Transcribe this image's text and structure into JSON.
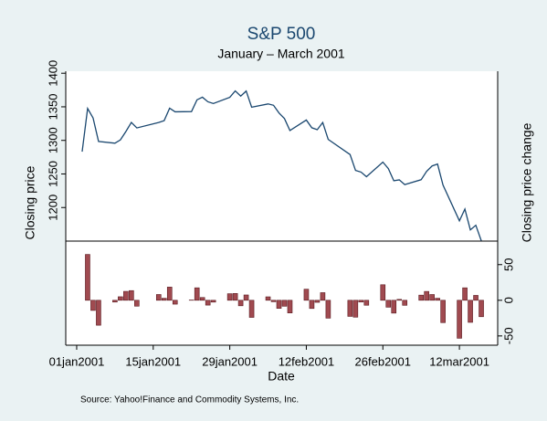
{
  "chart_data": {
    "type": "line",
    "title": "S&P 500",
    "subtitle": "January – March 2001",
    "xlabel": "Date",
    "ylabel": "Closing price",
    "y2label": "Closing price change",
    "note": "Source:  Yahoo!Finance and Commodity Systems, Inc.",
    "x": [
      "2001-01-02",
      "2001-01-03",
      "2001-01-04",
      "2001-01-05",
      "2001-01-08",
      "2001-01-09",
      "2001-01-10",
      "2001-01-11",
      "2001-01-12",
      "2001-01-16",
      "2001-01-17",
      "2001-01-18",
      "2001-01-19",
      "2001-01-22",
      "2001-01-23",
      "2001-01-24",
      "2001-01-25",
      "2001-01-26",
      "2001-01-29",
      "2001-01-30",
      "2001-01-31",
      "2001-02-01",
      "2001-02-02",
      "2001-02-05",
      "2001-02-06",
      "2001-02-07",
      "2001-02-08",
      "2001-02-09",
      "2001-02-12",
      "2001-02-13",
      "2001-02-14",
      "2001-02-15",
      "2001-02-16",
      "2001-02-20",
      "2001-02-21",
      "2001-02-22",
      "2001-02-23",
      "2001-02-26",
      "2001-02-27",
      "2001-02-28",
      "2001-03-01",
      "2001-03-02",
      "2001-03-05",
      "2001-03-06",
      "2001-03-07",
      "2001-03-08",
      "2001-03-09",
      "2001-03-12",
      "2001-03-13",
      "2001-03-14",
      "2001-03-15",
      "2001-03-16"
    ],
    "series": [
      {
        "color": "#1a476f",
        "values": [
          1283.27,
          1347.56,
          1333.34,
          1298.35,
          1295.86,
          1300.8,
          1313.27,
          1326.82,
          1318.55,
          1326.65,
          1329.47,
          1347.97,
          1342.54,
          1342.9,
          1360.4,
          1364.3,
          1357.51,
          1354.95,
          1364.17,
          1373.73,
          1366.01,
          1373.47,
          1349.47,
          1354.31,
          1352.26,
          1340.89,
          1332.53,
          1314.76,
          1330.31,
          1318.8,
          1315.92,
          1326.61,
          1301.53,
          1278.94,
          1255.27,
          1252.82,
          1245.86,
          1267.65,
          1257.94,
          1239.94,
          1241.23,
          1234.18,
          1241.41,
          1253.8,
          1261.89,
          1264.74,
          1233.42,
          1180.16,
          1197.66,
          1166.71,
          1173.56,
          1150.53
        ]
      },
      {
        "type": "bar",
        "axis": "y2",
        "color": "#a04a50",
        "values": [
          null,
          64.29,
          -14.22,
          -34.99,
          -2.49,
          4.94,
          12.47,
          13.55,
          -8.27,
          8.1,
          2.82,
          18.5,
          -5.43,
          0.36,
          17.5,
          3.9,
          -6.79,
          -2.56,
          9.22,
          9.56,
          -7.72,
          7.46,
          -24.0,
          4.84,
          -2.05,
          -11.37,
          -8.36,
          -17.77,
          15.55,
          -11.51,
          -2.88,
          10.69,
          -25.08,
          -22.59,
          -23.67,
          -2.45,
          -6.96,
          21.79,
          -9.71,
          -18.0,
          1.29,
          -7.05,
          7.23,
          12.39,
          8.09,
          2.85,
          -31.32,
          -53.26,
          17.5,
          -30.95,
          6.85,
          -23.03
        ]
      }
    ],
    "xlim": [
      "2000-12-30",
      "2001-03-19"
    ],
    "xticks": [
      {
        "value": "2001-01-01",
        "label": "01jan2001"
      },
      {
        "value": "2001-01-15",
        "label": "15jan2001"
      },
      {
        "value": "2001-01-29",
        "label": "29jan2001"
      },
      {
        "value": "2001-02-12",
        "label": "12feb2001"
      },
      {
        "value": "2001-02-26",
        "label": "26feb2001"
      },
      {
        "value": "2001-03-12",
        "label": "12mar2001"
      }
    ],
    "ylim": [
      1150,
      1403
    ],
    "yticks": [
      1200,
      1250,
      1300,
      1350,
      1400
    ],
    "y2lim": [
      -63,
      83
    ],
    "y2ticks": [
      -50,
      0,
      50
    ],
    "grid": false
  }
}
